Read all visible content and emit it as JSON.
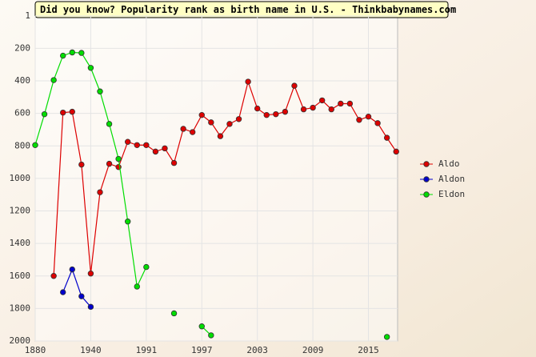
{
  "chart_data": {
    "type": "line",
    "title": "Did you know? Popularity rank as birth name in U.S. - Thinkbabynames.com",
    "categories": [
      "1880",
      null,
      null,
      null,
      null,
      null,
      "1940",
      null,
      null,
      null,
      null,
      null,
      "1991",
      null,
      null,
      null,
      null,
      null,
      "1997",
      null,
      null,
      null,
      null,
      null,
      "2003",
      null,
      null,
      null,
      null,
      null,
      "2009",
      null,
      null,
      null,
      null,
      null,
      "2015",
      null,
      null,
      null
    ],
    "series": [
      {
        "name": "Aldo",
        "color": "#dd0000",
        "values": [
          null,
          null,
          1600,
          595,
          590,
          915,
          1585,
          1085,
          910,
          930,
          775,
          795,
          795,
          835,
          815,
          905,
          695,
          715,
          610,
          655,
          740,
          665,
          635,
          405,
          570,
          610,
          605,
          590,
          430,
          575,
          565,
          520,
          575,
          540,
          540,
          640,
          620,
          660,
          750,
          835
        ]
      },
      {
        "name": "Aldon",
        "color": "#0000cc",
        "values": [
          null,
          null,
          null,
          1700,
          1560,
          1725,
          1790,
          null,
          null,
          null,
          null,
          null,
          null,
          null,
          null,
          null,
          null,
          null,
          null,
          null,
          null,
          null,
          null,
          null,
          null,
          null,
          null,
          null,
          null,
          null,
          null,
          null,
          null,
          null,
          null,
          null,
          null,
          null,
          null,
          null
        ]
      },
      {
        "name": "Eldon",
        "color": "#00dd00",
        "values": [
          795,
          605,
          395,
          245,
          225,
          228,
          320,
          465,
          665,
          880,
          1265,
          1665,
          1545,
          null,
          null,
          1830,
          null,
          null,
          1910,
          1965,
          null,
          null,
          null,
          null,
          null,
          null,
          null,
          null,
          null,
          null,
          null,
          null,
          null,
          null,
          null,
          null,
          null,
          null,
          1975,
          null
        ]
      }
    ],
    "ylim": [
      1,
      2000
    ],
    "y_inverted": true,
    "yticks": [
      1,
      200,
      400,
      600,
      800,
      1000,
      1200,
      1400,
      1600,
      1800,
      2000
    ],
    "grid": true
  }
}
